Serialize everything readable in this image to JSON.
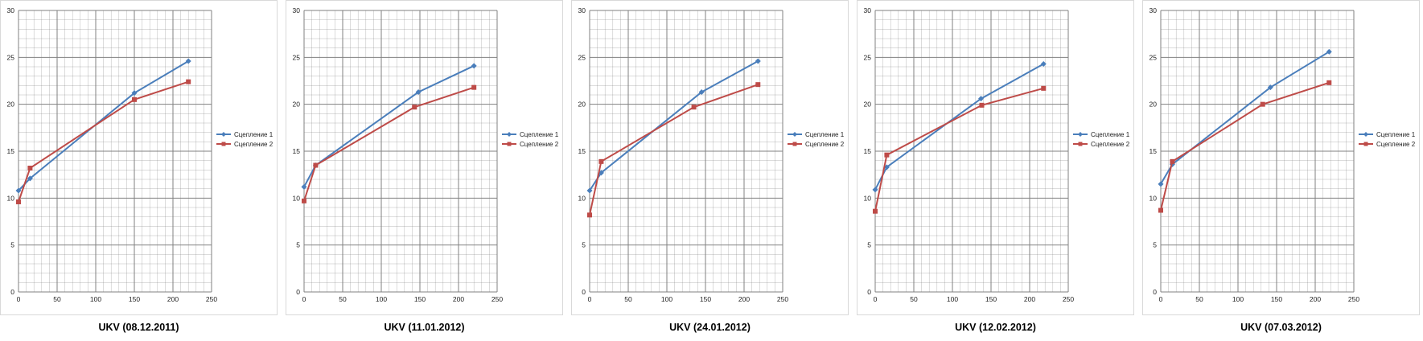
{
  "charts_caption_prefix": "UKV",
  "colors": {
    "series1": "#4a7ebb",
    "series2": "#be4b48",
    "grid": "#808080",
    "frame": "#d9d9d9"
  },
  "chart_data": [
    {
      "type": "line",
      "title": "UKV (08.12.2011)",
      "xlim": [
        0,
        250
      ],
      "ylim": [
        0,
        30
      ],
      "xticks": [
        0,
        50,
        100,
        150,
        200,
        250
      ],
      "yticks": [
        0,
        5,
        10,
        15,
        20,
        25,
        30
      ],
      "grid": true,
      "legend_position": "right",
      "series": [
        {
          "name": "Сцепление 1",
          "marker": "diamond",
          "x": [
            0,
            15,
            150,
            220
          ],
          "y": [
            10.8,
            12.1,
            21.2,
            24.6
          ]
        },
        {
          "name": "Сцепление 2",
          "marker": "square",
          "x": [
            0,
            15,
            150,
            220
          ],
          "y": [
            9.6,
            13.2,
            20.5,
            22.4
          ]
        }
      ]
    },
    {
      "type": "line",
      "title": "UKV (11.01.2012)",
      "xlim": [
        0,
        250
      ],
      "ylim": [
        0,
        30
      ],
      "xticks": [
        0,
        50,
        100,
        150,
        200,
        250
      ],
      "yticks": [
        0,
        5,
        10,
        15,
        20,
        25,
        30
      ],
      "grid": true,
      "legend_position": "right",
      "series": [
        {
          "name": "Сцепление 1",
          "marker": "diamond",
          "x": [
            0,
            15,
            148,
            220
          ],
          "y": [
            11.2,
            13.5,
            21.3,
            24.1
          ]
        },
        {
          "name": "Сцепление 2",
          "marker": "square",
          "x": [
            0,
            15,
            143,
            220
          ],
          "y": [
            9.7,
            13.5,
            19.7,
            21.8
          ]
        }
      ]
    },
    {
      "type": "line",
      "title": "UKV (24.01.2012)",
      "xlim": [
        0,
        250
      ],
      "ylim": [
        0,
        30
      ],
      "xticks": [
        0,
        50,
        100,
        150,
        200,
        250
      ],
      "yticks": [
        0,
        5,
        10,
        15,
        20,
        25,
        30
      ],
      "grid": true,
      "legend_position": "right",
      "series": [
        {
          "name": "Сцепление 1",
          "marker": "diamond",
          "x": [
            0,
            15,
            145,
            218
          ],
          "y": [
            10.8,
            12.7,
            21.3,
            24.6
          ]
        },
        {
          "name": "Сцепление 2",
          "marker": "square",
          "x": [
            0,
            15,
            135,
            218
          ],
          "y": [
            8.2,
            13.9,
            19.7,
            22.1
          ]
        }
      ]
    },
    {
      "type": "line",
      "title": "UKV (12.02.2012)",
      "xlim": [
        0,
        250
      ],
      "ylim": [
        0,
        30
      ],
      "xticks": [
        0,
        50,
        100,
        150,
        200,
        250
      ],
      "yticks": [
        0,
        5,
        10,
        15,
        20,
        25,
        30
      ],
      "grid": true,
      "legend_position": "right",
      "series": [
        {
          "name": "Сцепление 1",
          "marker": "diamond",
          "x": [
            0,
            15,
            137,
            218
          ],
          "y": [
            10.9,
            13.3,
            20.6,
            24.3
          ]
        },
        {
          "name": "Сцепление 2",
          "marker": "square",
          "x": [
            0,
            15,
            138,
            218
          ],
          "y": [
            8.6,
            14.6,
            19.9,
            21.7
          ]
        }
      ]
    },
    {
      "type": "line",
      "title": "UKV (07.03.2012)",
      "xlim": [
        0,
        250
      ],
      "ylim": [
        0,
        30
      ],
      "xticks": [
        0,
        50,
        100,
        150,
        200,
        250
      ],
      "yticks": [
        0,
        5,
        10,
        15,
        20,
        25,
        30
      ],
      "grid": true,
      "legend_position": "right",
      "series": [
        {
          "name": "Сцепление 1",
          "marker": "diamond",
          "x": [
            0,
            15,
            142,
            218
          ],
          "y": [
            11.5,
            13.6,
            21.8,
            25.6
          ]
        },
        {
          "name": "Сцепление 2",
          "marker": "square",
          "x": [
            0,
            15,
            132,
            218
          ],
          "y": [
            8.7,
            13.9,
            20.0,
            22.3
          ]
        }
      ]
    }
  ]
}
